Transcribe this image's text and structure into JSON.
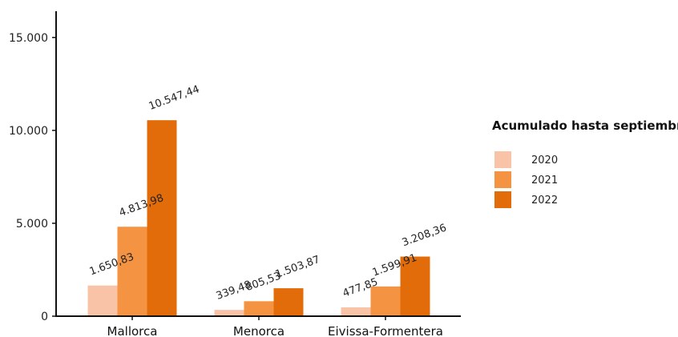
{
  "chart_data": {
    "type": "bar",
    "categories": [
      "Mallorca",
      "Menorca",
      "Eivissa-Formentera"
    ],
    "series": [
      {
        "name": "2020",
        "color": "#f9c3a8",
        "values": [
          1650.83,
          339.48,
          477.85
        ],
        "labels": [
          "1.650,83",
          "339,48",
          "477,85"
        ]
      },
      {
        "name": "2021",
        "color": "#f49342",
        "values": [
          4813.98,
          805.53,
          1599.91
        ],
        "labels": [
          "4.813,98",
          "805,53",
          "1.599,91"
        ]
      },
      {
        "name": "2022",
        "color": "#e36c0a",
        "values": [
          10547.44,
          1503.87,
          3208.36
        ],
        "labels": [
          "10.547,44",
          "1.503,87",
          "3.208,36"
        ]
      }
    ],
    "yticks": [
      0,
      5000,
      10000,
      15000
    ],
    "ytick_labels": [
      "0",
      "5.000",
      "10.000",
      "15.000"
    ],
    "ylim": [
      0,
      16500
    ],
    "legend_title": "Acumulado hasta septiembre",
    "legend_position": "right",
    "grid": false
  }
}
